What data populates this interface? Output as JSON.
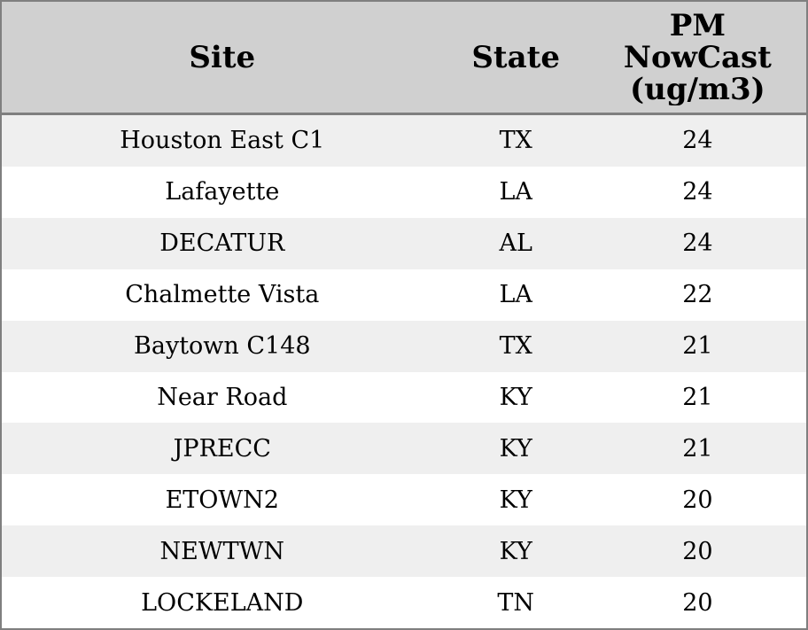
{
  "chart_data": {
    "type": "table",
    "columns": [
      "Site",
      "State",
      "PM NowCast (ug/m3)"
    ],
    "header_display": {
      "site_label": "Site",
      "state_label": "State",
      "pm_lines": [
        "PM",
        "NowCast",
        "(ug/m3)"
      ]
    },
    "rows": [
      {
        "site": "Houston East C1",
        "state": "TX",
        "pm_nowcast": "24"
      },
      {
        "site": "Lafayette",
        "state": "LA",
        "pm_nowcast": "24"
      },
      {
        "site": "DECATUR",
        "state": "AL",
        "pm_nowcast": "24"
      },
      {
        "site": "Chalmette Vista",
        "state": "LA",
        "pm_nowcast": "22"
      },
      {
        "site": "Baytown C148",
        "state": "TX",
        "pm_nowcast": "21"
      },
      {
        "site": "Near Road",
        "state": "KY",
        "pm_nowcast": "21"
      },
      {
        "site": "JPRECC",
        "state": "KY",
        "pm_nowcast": "21"
      },
      {
        "site": "ETOWN2",
        "state": "KY",
        "pm_nowcast": "20"
      },
      {
        "site": "NEWTWN",
        "state": "KY",
        "pm_nowcast": "20"
      },
      {
        "site": "LOCKELAND",
        "state": "TN",
        "pm_nowcast": "20"
      }
    ],
    "layout": {
      "striped": true,
      "first_data_row_shaded": true,
      "legend_position": "none",
      "grid": false
    },
    "colors": {
      "header_bg": "#d0d0d0",
      "row_shaded_bg": "#efefef",
      "row_bg": "#ffffff",
      "border": "#7f7f7f",
      "text": "#000000"
    }
  }
}
